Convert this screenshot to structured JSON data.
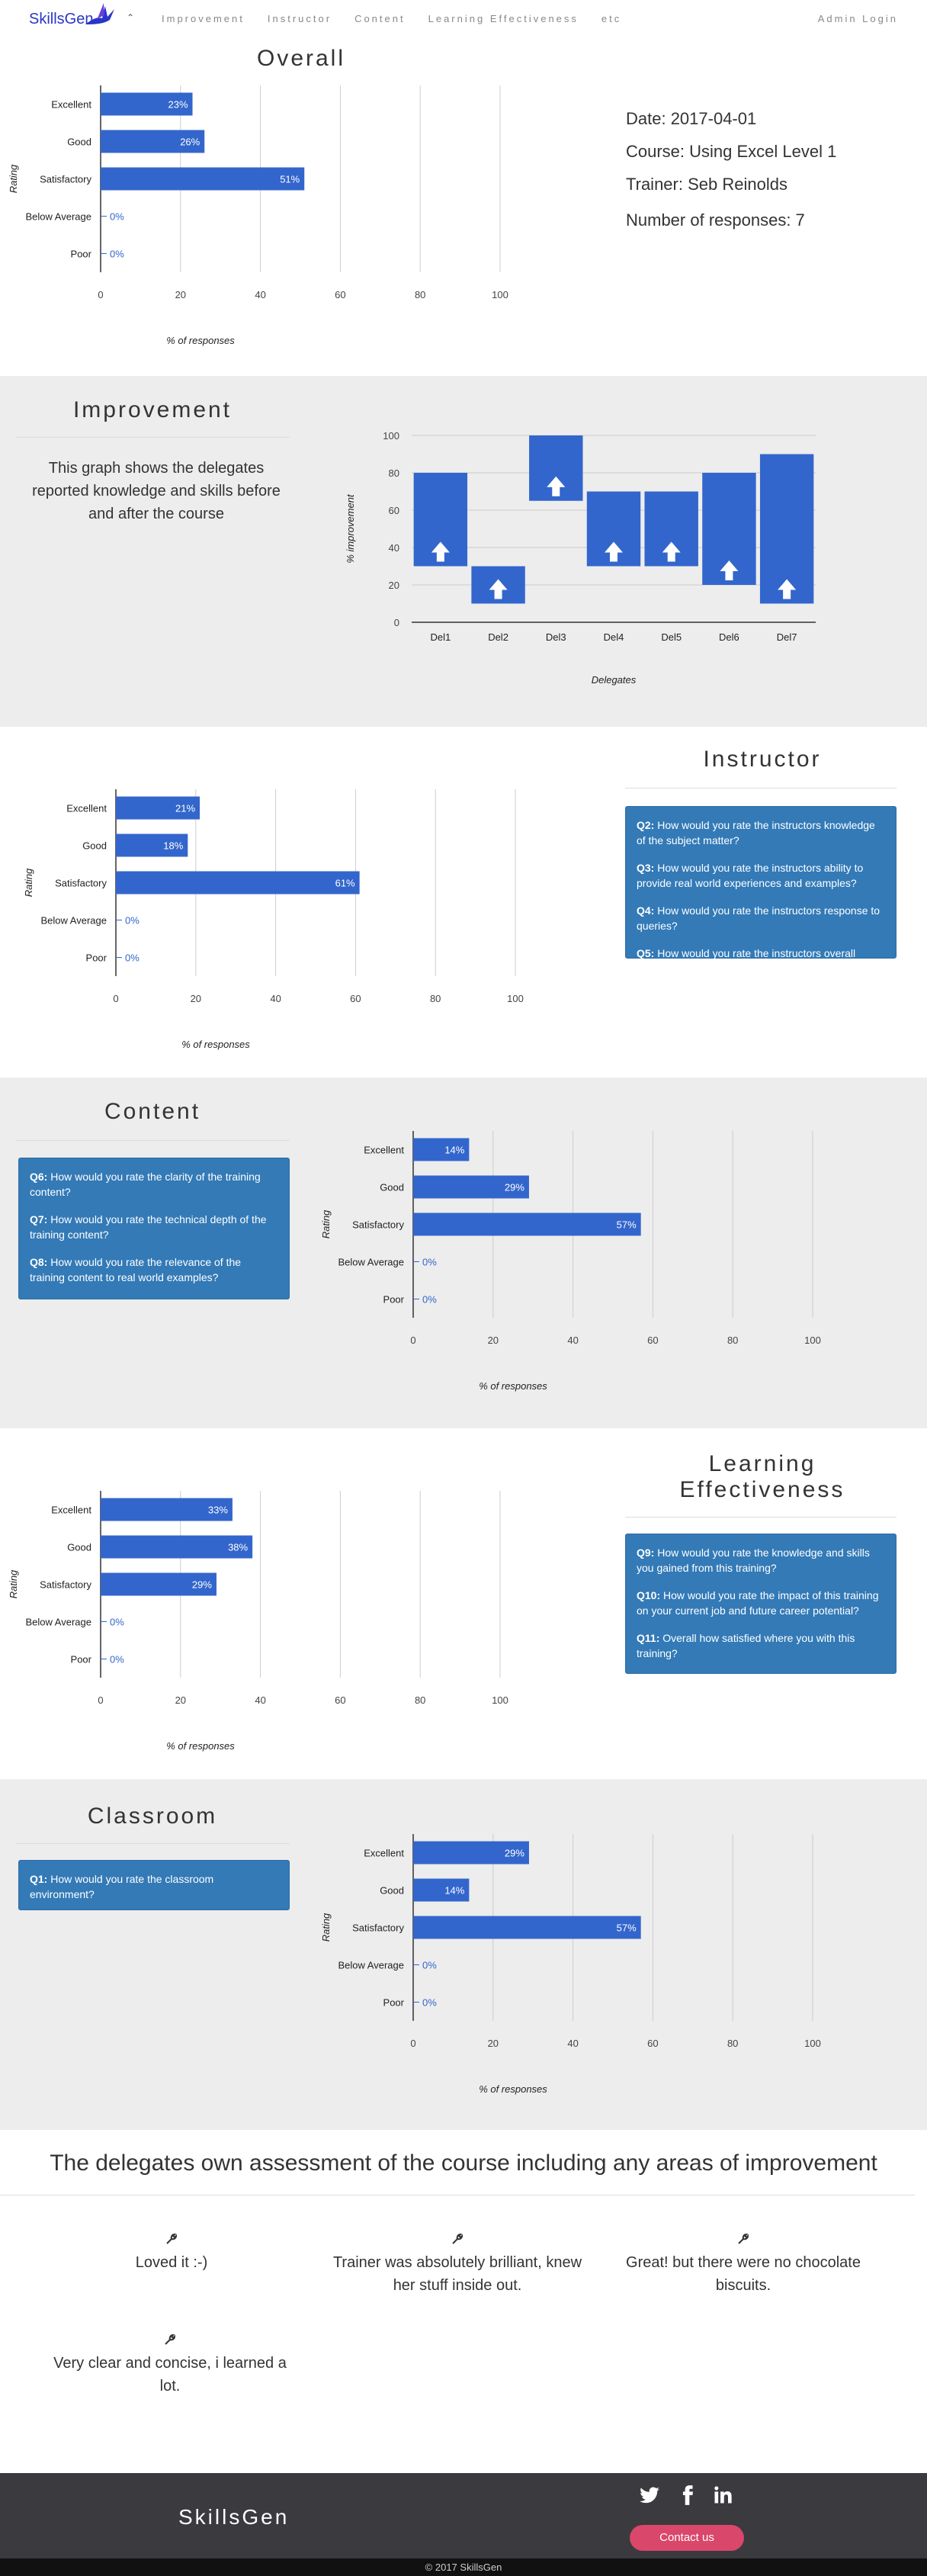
{
  "nav": {
    "brand": "SkillsGen",
    "links": [
      "Improvement",
      "Instructor",
      "Content",
      "Learning Effectiveness",
      "etc"
    ],
    "admin": "Admin Login"
  },
  "overall": {
    "title": "Overall",
    "date": "Date: 2017-04-01",
    "course": "Course: Using Excel Level 1",
    "trainer": "Trainer: Seb Reinolds",
    "responses": "Number of responses: 7"
  },
  "improvement": {
    "title": "Improvement",
    "description": "This graph shows the delegates reported knowledge and skills before and after the course"
  },
  "instructor": {
    "title": "Instructor",
    "questions": [
      {
        "q": "Q2:",
        "text": "How would you rate the instructors knowledge of the subject matter?"
      },
      {
        "q": "Q3:",
        "text": "How would you rate the instructors ability to provide real world experiences and examples?"
      },
      {
        "q": "Q4:",
        "text": "How would you rate the instructors response to queries?"
      },
      {
        "q": "Q5:",
        "text": "How would you rate the instructors overall performance?"
      }
    ]
  },
  "content": {
    "title": "Content",
    "questions": [
      {
        "q": "Q6:",
        "text": "How would you rate the clarity of the training content?"
      },
      {
        "q": "Q7:",
        "text": "How would you rate the technical depth of the training content?"
      },
      {
        "q": "Q8:",
        "text": "How would you rate the relevance of the training content to real world examples?"
      }
    ]
  },
  "learning": {
    "title_line1": "Learning",
    "title_line2": "Effectiveness",
    "questions": [
      {
        "q": "Q9:",
        "text": "How would you rate the knowledge and skills you gained from this training?"
      },
      {
        "q": "Q10:",
        "text": "How would you rate the impact of this training on your current job and future career potential?"
      },
      {
        "q": "Q11:",
        "text": "Overall how satisfied where you with this training?"
      }
    ]
  },
  "classroom": {
    "title": "Classroom",
    "questions": [
      {
        "q": "Q1:",
        "text": "How would you rate the classroom environment?"
      }
    ]
  },
  "assessment": {
    "title": "The delegates own assessment of the course including any areas of improvement",
    "comments": [
      "Loved it :-)",
      "Trainer was absolutely brilliant, knew her stuff inside out.",
      "Great! but there were no chocolate biscuits.",
      "Very clear and concise, i learned a lot."
    ]
  },
  "footer": {
    "brand": "SkillsGen",
    "contact": "Contact us",
    "copyright": "© 2017 SkillsGen",
    "social_icons": [
      "twitter-icon",
      "facebook-icon",
      "linkedin-icon"
    ]
  },
  "chart_data": [
    {
      "type": "bar",
      "orientation": "horizontal",
      "section": "overall",
      "categories": [
        "Excellent",
        "Good",
        "Satisfactory",
        "Below Average",
        "Poor"
      ],
      "values": [
        23,
        26,
        51,
        0,
        0
      ],
      "labels": [
        "23%",
        "26%",
        "51%",
        "0%",
        "0%"
      ],
      "xlabel": "% of responses",
      "ylabel": "Rating",
      "xlim": [
        0,
        100
      ],
      "xticks": [
        "0",
        "20",
        "40",
        "60",
        "80",
        "100"
      ],
      "color": "#3366cc"
    },
    {
      "type": "bar",
      "subtype": "floating-range",
      "section": "improvement",
      "categories": [
        "Del1",
        "Del2",
        "Del3",
        "Del4",
        "Del5",
        "Del6",
        "Del7"
      ],
      "low": [
        30,
        10,
        65,
        30,
        30,
        20,
        10
      ],
      "high": [
        80,
        30,
        100,
        70,
        70,
        80,
        90
      ],
      "xlabel": "Delegates",
      "ylabel": "% improvement",
      "ylim": [
        0,
        100
      ],
      "yticks": [
        "0",
        "20",
        "40",
        "60",
        "80",
        "100"
      ],
      "color": "#3366cc"
    },
    {
      "type": "bar",
      "orientation": "horizontal",
      "section": "instructor",
      "categories": [
        "Excellent",
        "Good",
        "Satisfactory",
        "Below Average",
        "Poor"
      ],
      "values": [
        21,
        18,
        61,
        0,
        0
      ],
      "labels": [
        "21%",
        "18%",
        "61%",
        "0%",
        "0%"
      ],
      "xlabel": "% of responses",
      "ylabel": "Rating",
      "xlim": [
        0,
        100
      ],
      "xticks": [
        "0",
        "20",
        "40",
        "60",
        "80",
        "100"
      ],
      "color": "#3366cc"
    },
    {
      "type": "bar",
      "orientation": "horizontal",
      "section": "content",
      "categories": [
        "Excellent",
        "Good",
        "Satisfactory",
        "Below Average",
        "Poor"
      ],
      "values": [
        14,
        29,
        57,
        0,
        0
      ],
      "labels": [
        "14%",
        "29%",
        "57%",
        "0%",
        "0%"
      ],
      "xlabel": "% of responses",
      "ylabel": "Rating",
      "xlim": [
        0,
        100
      ],
      "xticks": [
        "0",
        "20",
        "40",
        "60",
        "80",
        "100"
      ],
      "color": "#3366cc"
    },
    {
      "type": "bar",
      "orientation": "horizontal",
      "section": "learning",
      "categories": [
        "Excellent",
        "Good",
        "Satisfactory",
        "Below Average",
        "Poor"
      ],
      "values": [
        33,
        38,
        29,
        0,
        0
      ],
      "labels": [
        "33%",
        "38%",
        "29%",
        "0%",
        "0%"
      ],
      "xlabel": "% of responses",
      "ylabel": "Rating",
      "xlim": [
        0,
        100
      ],
      "xticks": [
        "0",
        "20",
        "40",
        "60",
        "80",
        "100"
      ],
      "color": "#3366cc"
    },
    {
      "type": "bar",
      "orientation": "horizontal",
      "section": "classroom",
      "categories": [
        "Excellent",
        "Good",
        "Satisfactory",
        "Below Average",
        "Poor"
      ],
      "values": [
        29,
        14,
        57,
        0,
        0
      ],
      "labels": [
        "29%",
        "14%",
        "57%",
        "0%",
        "0%"
      ],
      "xlabel": "% of responses",
      "ylabel": "Rating",
      "xlim": [
        0,
        100
      ],
      "xticks": [
        "0",
        "20",
        "40",
        "60",
        "80",
        "100"
      ],
      "color": "#3366cc"
    }
  ]
}
